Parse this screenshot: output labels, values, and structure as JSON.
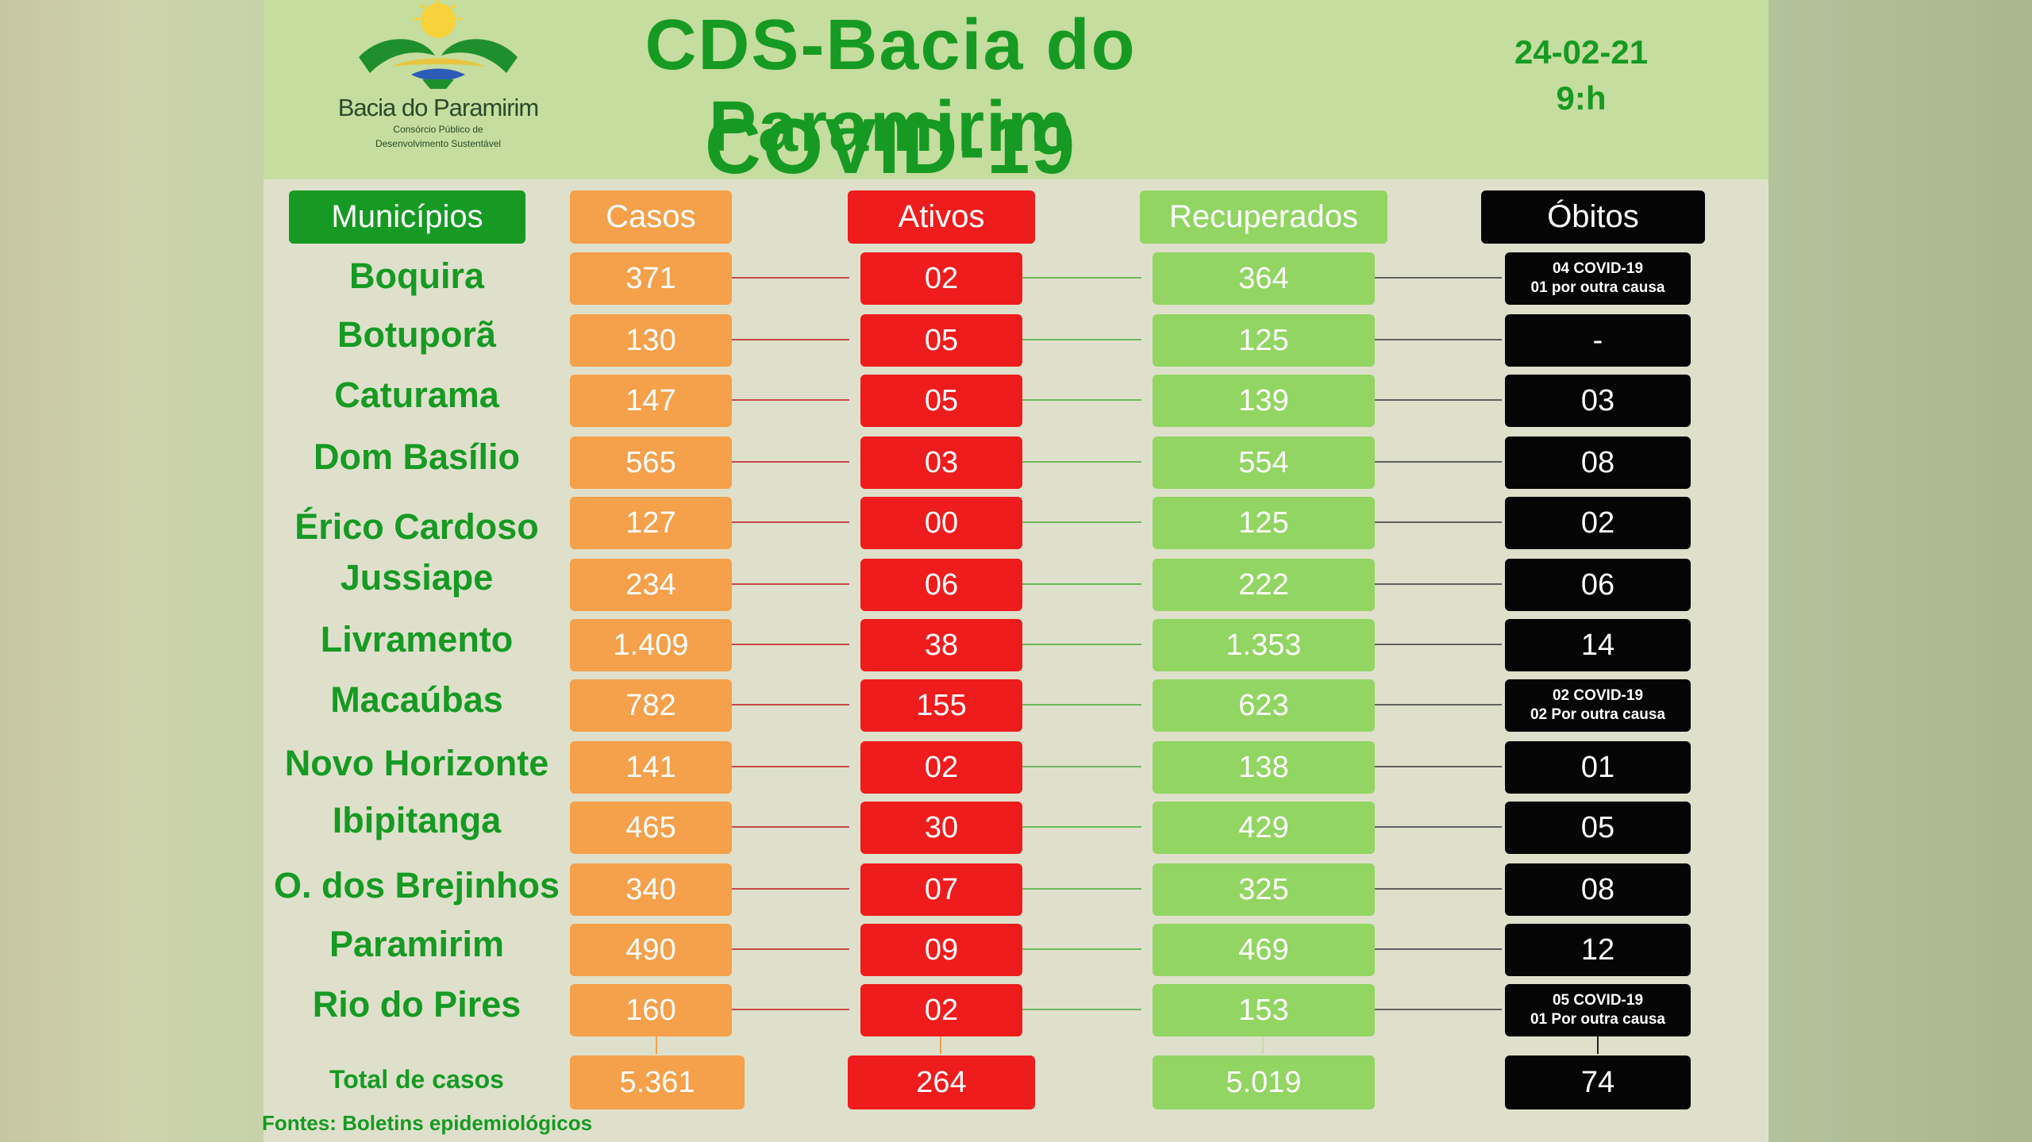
{
  "header": {
    "logo_name": "Bacia do Paramirim",
    "logo_sub_line1": "Consórcio Público de",
    "logo_sub_line2": "Desenvolvimento Sustentável",
    "title_line1": "CDS-Bacia do Paramirim",
    "title_line2": "COVID-19",
    "date": "24-02-21",
    "time": "9:h"
  },
  "columns": {
    "municipios": "Municípios",
    "casos": "Casos",
    "ativos": "Ativos",
    "recuperados": "Recuperados",
    "obitos": "Óbitos"
  },
  "rows": [
    {
      "municipio": "Boquira",
      "casos": "371",
      "ativos": "02",
      "recuperados": "364",
      "obitos": "",
      "obitos_note1": "04 COVID-19",
      "obitos_note2": "01 por outra causa"
    },
    {
      "municipio": "Botuporã",
      "casos": "130",
      "ativos": "05",
      "recuperados": "125",
      "obitos": "-",
      "obitos_note1": "",
      "obitos_note2": ""
    },
    {
      "municipio": "Caturama",
      "casos": "147",
      "ativos": "05",
      "recuperados": "139",
      "obitos": "03",
      "obitos_note1": "",
      "obitos_note2": ""
    },
    {
      "municipio": "Dom Basílio",
      "casos": "565",
      "ativos": "03",
      "recuperados": "554",
      "obitos": "08",
      "obitos_note1": "",
      "obitos_note2": ""
    },
    {
      "municipio": "Érico Cardoso",
      "casos": "127",
      "ativos": "00",
      "recuperados": "125",
      "obitos": "02",
      "obitos_note1": "",
      "obitos_note2": ""
    },
    {
      "municipio": "Jussiape",
      "casos": "234",
      "ativos": "06",
      "recuperados": "222",
      "obitos": "06",
      "obitos_note1": "",
      "obitos_note2": ""
    },
    {
      "municipio": "Livramento",
      "casos": "1.409",
      "ativos": "38",
      "recuperados": "1.353",
      "obitos": "14",
      "obitos_note1": "",
      "obitos_note2": ""
    },
    {
      "municipio": "Macaúbas",
      "casos": "782",
      "ativos": "155",
      "recuperados": "623",
      "obitos": "",
      "obitos_note1": "02 COVID-19",
      "obitos_note2": "02 Por outra causa"
    },
    {
      "municipio": "Novo Horizonte",
      "casos": "141",
      "ativos": "02",
      "recuperados": "138",
      "obitos": "01",
      "obitos_note1": "",
      "obitos_note2": ""
    },
    {
      "municipio": "Ibipitanga",
      "casos": "465",
      "ativos": "30",
      "recuperados": "429",
      "obitos": "05",
      "obitos_note1": "",
      "obitos_note2": ""
    },
    {
      "municipio": "O. dos Brejinhos",
      "casos": "340",
      "ativos": "07",
      "recuperados": "325",
      "obitos": "08",
      "obitos_note1": "",
      "obitos_note2": ""
    },
    {
      "municipio": "Paramirim",
      "casos": "490",
      "ativos": "09",
      "recuperados": "469",
      "obitos": "12",
      "obitos_note1": "",
      "obitos_note2": ""
    },
    {
      "municipio": "Rio do Pires",
      "casos": "160",
      "ativos": "02",
      "recuperados": "153",
      "obitos": "",
      "obitos_note1": "05 COVID-19",
      "obitos_note2": "01 Por outra causa"
    }
  ],
  "totals": {
    "label": "Total de casos",
    "casos": "5.361",
    "ativos": "264",
    "recuperados": "5.019",
    "obitos": "74"
  },
  "footer": {
    "fontes": "Fontes: Boletins epidemiológicos"
  },
  "colors": {
    "green_title": "#169a23",
    "casos": "#f5a04a",
    "ativos": "#ee1c1c",
    "recuperados": "#92d562",
    "obitos": "#050505"
  }
}
